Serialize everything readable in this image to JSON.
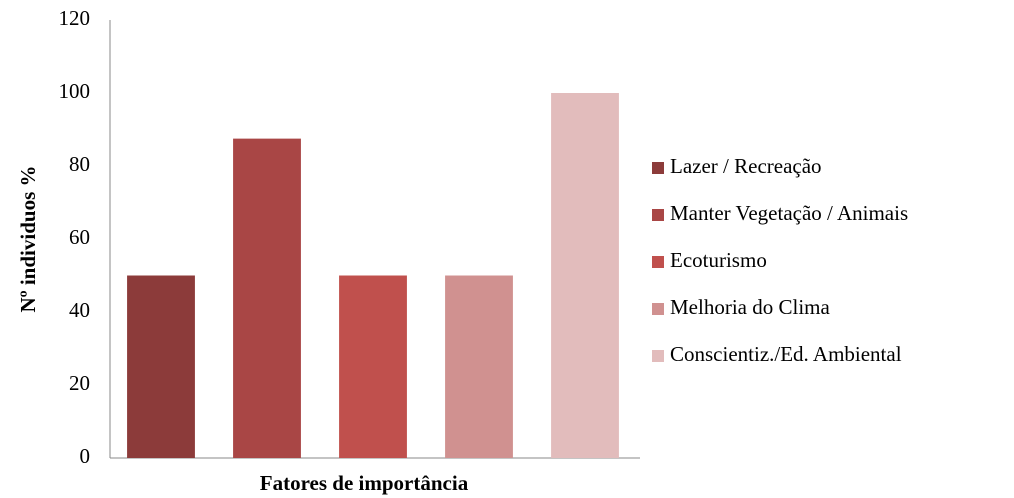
{
  "chart_data": {
    "type": "bar",
    "x_label": "Fatores de importância",
    "y_label": "Nº individuos  %",
    "categories": [
      null
    ],
    "series": [
      {
        "name": "Lazer / Recreação",
        "color": "#8c3b3a",
        "values": [
          50
        ]
      },
      {
        "name": "Manter Vegetação / Animais",
        "color": "#a94645",
        "values": [
          87.5
        ]
      },
      {
        "name": "Ecoturismo",
        "color": "#c0504d",
        "values": [
          50
        ]
      },
      {
        "name": "Melhoria do Clima",
        "color": "#d09190",
        "values": [
          50
        ]
      },
      {
        "name": "Conscientiz./Ed. Ambiental",
        "color": "#e2bcbc",
        "values": [
          100
        ]
      }
    ],
    "ylim": [
      0,
      120
    ],
    "yticks": [
      0,
      20,
      40,
      60,
      80,
      100,
      120
    ],
    "grid": false,
    "legend": "right"
  }
}
